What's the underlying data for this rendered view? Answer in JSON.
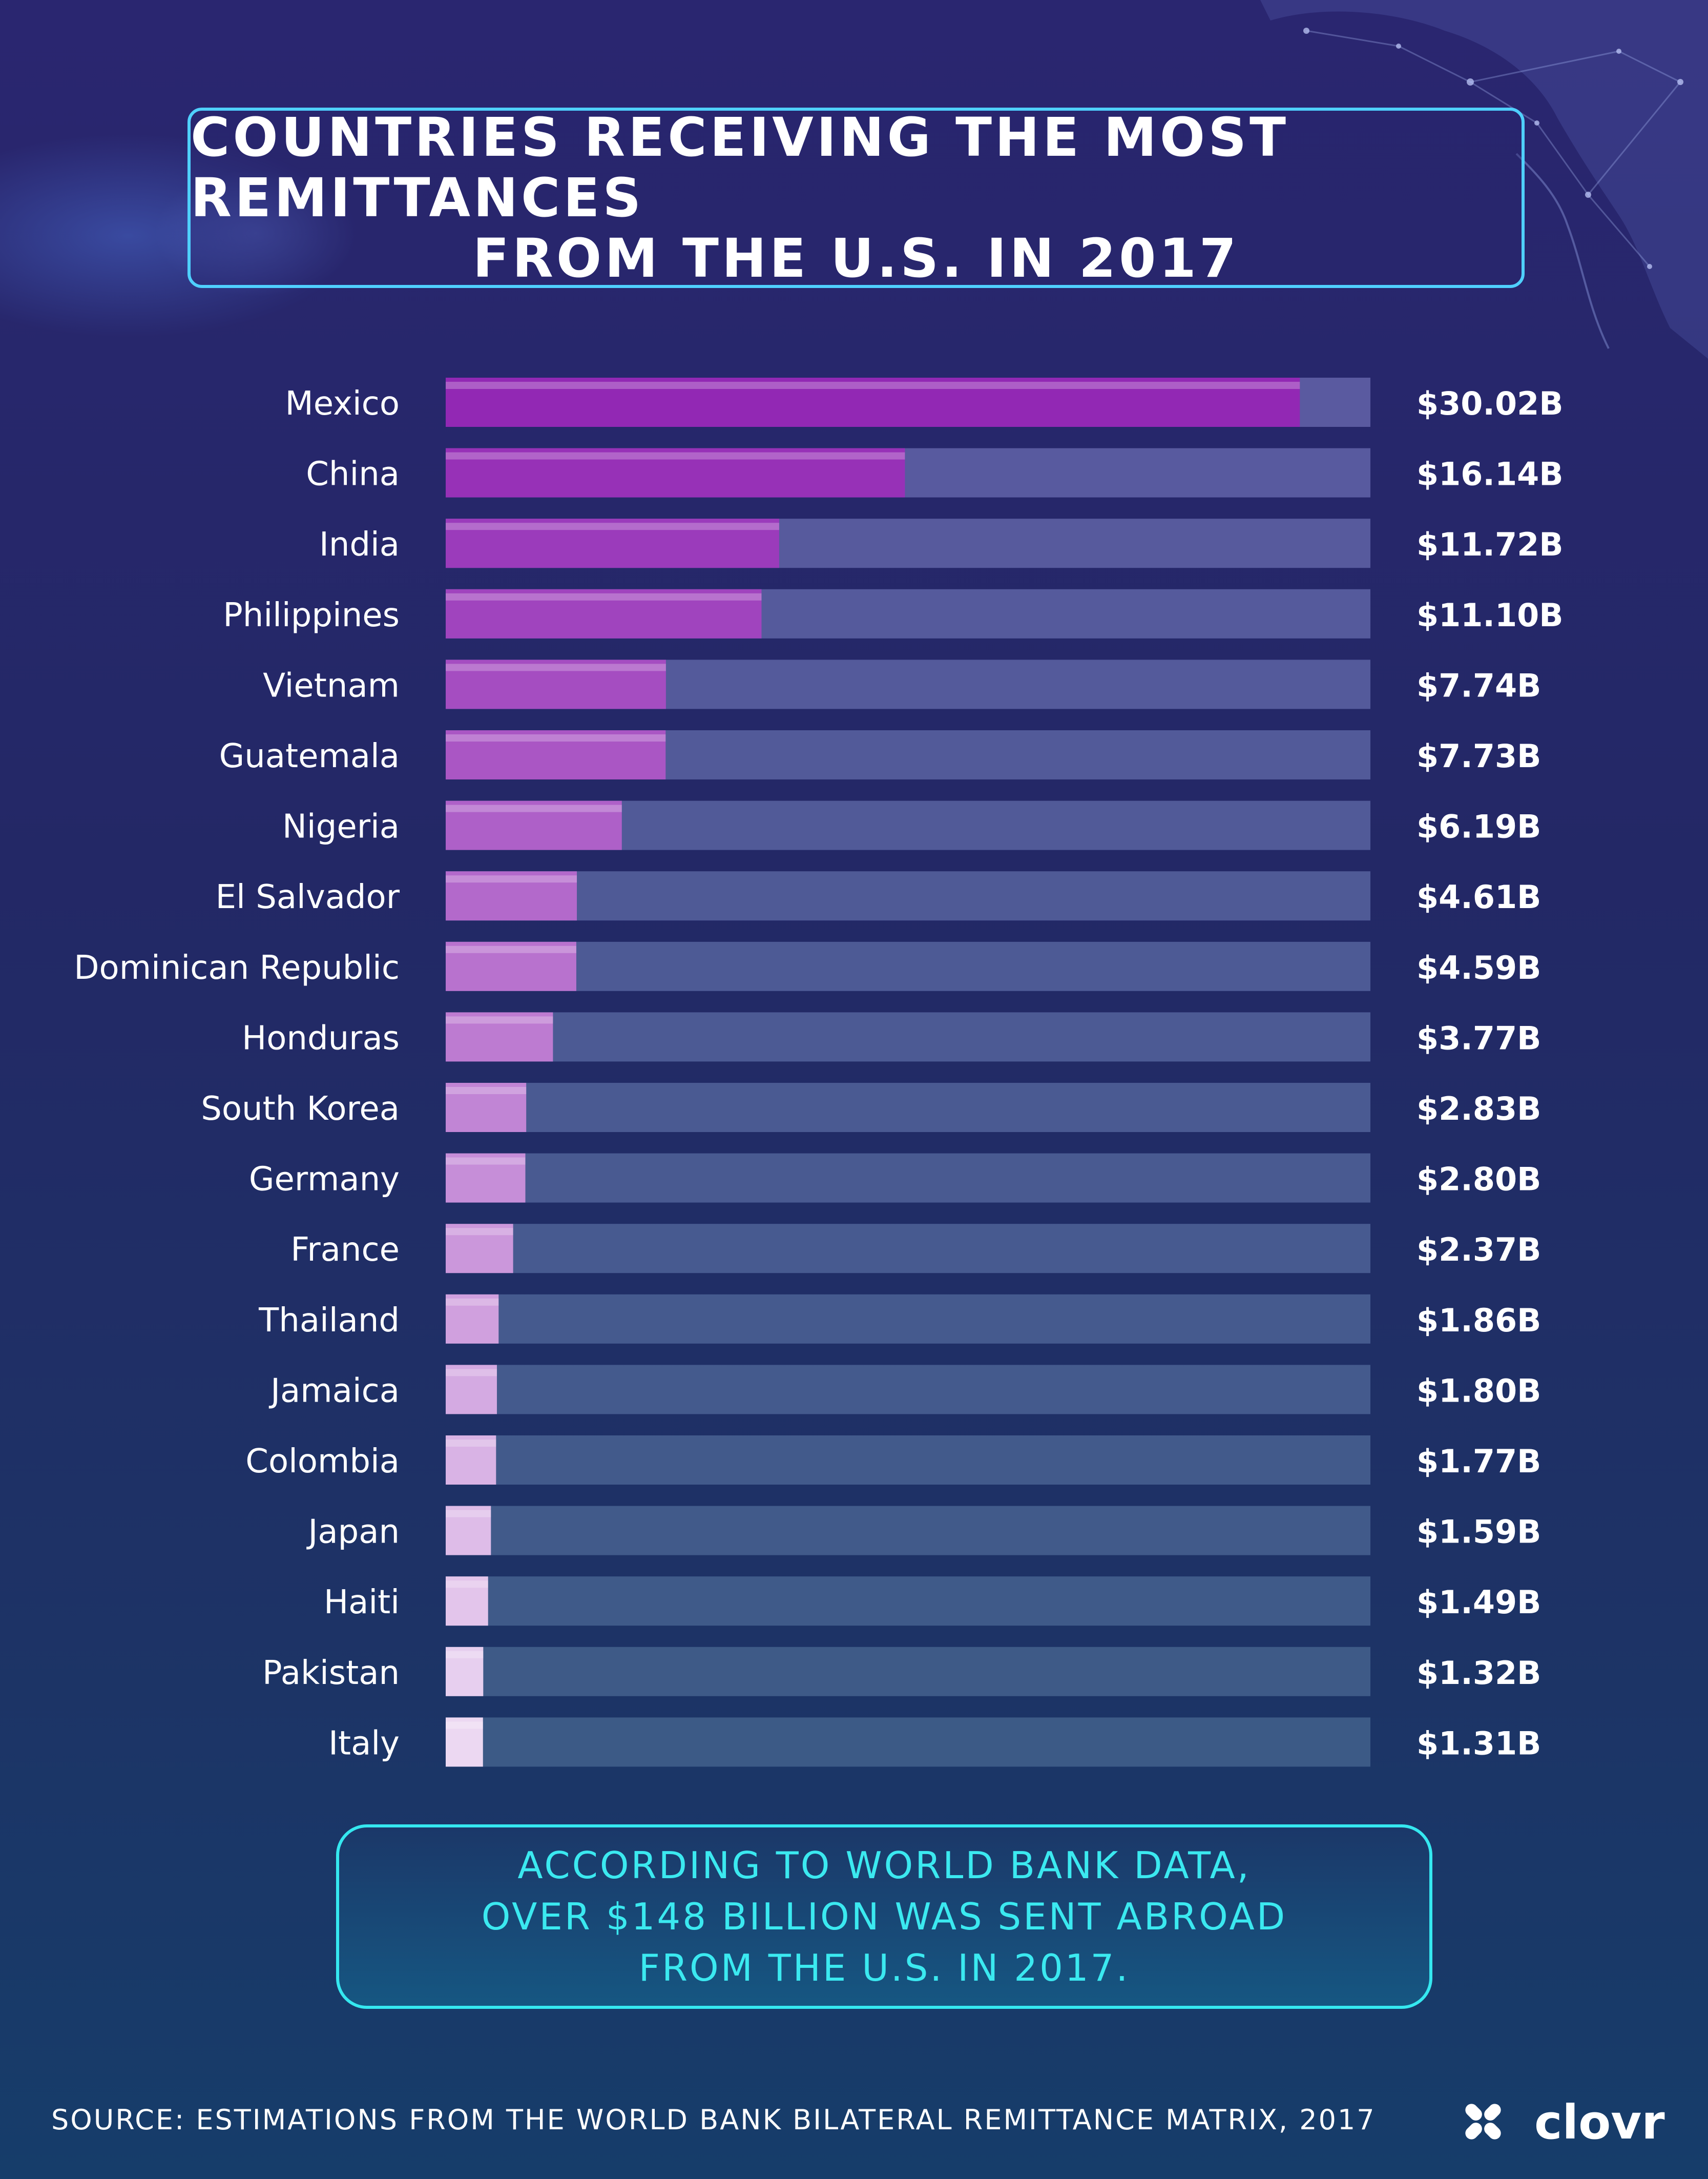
{
  "title": {
    "line1": "COUNTRIES RECEIVING THE MOST REMITTANCES",
    "line2": "FROM THE U.S. IN 2017"
  },
  "chart_data": {
    "type": "bar",
    "orientation": "horizontal",
    "categories": [
      "Mexico",
      "China",
      "India",
      "Philippines",
      "Vietnam",
      "Guatemala",
      "Nigeria",
      "El Salvador",
      "Dominican Republic",
      "Honduras",
      "South Korea",
      "Germany",
      "France",
      "Thailand",
      "Jamaica",
      "Colombia",
      "Japan",
      "Haiti",
      "Pakistan",
      "Italy"
    ],
    "values": [
      30.02,
      16.14,
      11.72,
      11.1,
      7.74,
      7.73,
      6.19,
      4.61,
      4.59,
      3.77,
      2.83,
      2.8,
      2.37,
      1.86,
      1.8,
      1.77,
      1.59,
      1.49,
      1.32,
      1.31
    ],
    "value_labels": [
      "$30.02B",
      "$16.14B",
      "$11.72B",
      "$11.10B",
      "$7.74B",
      "$7.73B",
      "$6.19B",
      "$4.61B",
      "$4.59B",
      "$3.77B",
      "$2.83B",
      "$2.80B",
      "$2.37B",
      "$1.86B",
      "$1.80B",
      "$1.77B",
      "$1.59B",
      "$1.49B",
      "$1.32B",
      "$1.31B"
    ],
    "xlim": [
      0,
      32.5
    ],
    "grid": false,
    "legend": "none"
  },
  "colors": {
    "bar_start": "#9228b4",
    "bar_end": "#ecd8f2",
    "track": "#5a5aa0",
    "track_end": "#3c5a86",
    "accent": "#4fd0ff",
    "note": "#3be9f0"
  },
  "footnote": {
    "line1": "ACCORDING TO WORLD BANK DATA,",
    "line2": "OVER $148 BILLION WAS SENT ABROAD",
    "line3": "FROM THE U.S. IN 2017."
  },
  "source": "SOURCE: ESTIMATIONS FROM THE WORLD BANK BILATERAL REMITTANCE MATRIX, 2017",
  "logo": {
    "text": "clovr",
    "icon": "clover-icon"
  }
}
